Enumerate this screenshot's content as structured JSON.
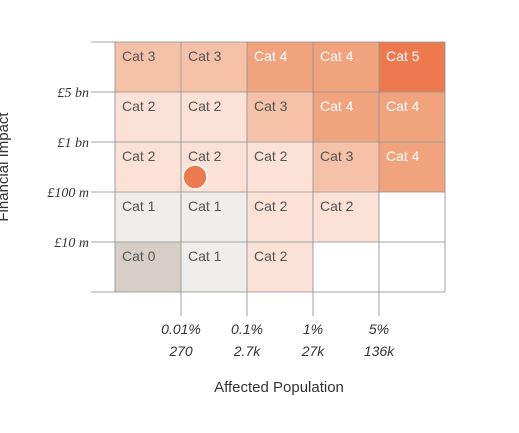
{
  "chart_data": {
    "type": "heatmap",
    "xlabel": "Affected Population",
    "ylabel": "Financial Impact",
    "x_ticks": [
      {
        "pct": "0.01%",
        "count": "270"
      },
      {
        "pct": "0.1%",
        "count": "2.7k"
      },
      {
        "pct": "1%",
        "count": "27k"
      },
      {
        "pct": "5%",
        "count": "136k"
      }
    ],
    "y_ticks": [
      "£5 bn",
      "£1 bn",
      "£100 m",
      "£10 m"
    ],
    "rows": [
      [
        "Cat 3",
        "Cat 3",
        "Cat 4",
        "Cat 4",
        "Cat 5"
      ],
      [
        "Cat 2",
        "Cat 2",
        "Cat 3",
        "Cat 4",
        "Cat 4"
      ],
      [
        "Cat 2",
        "Cat 2",
        "Cat 2",
        "Cat 3",
        "Cat 4"
      ],
      [
        "Cat 1",
        "Cat 1",
        "Cat 2",
        "Cat 2",
        ""
      ],
      [
        "Cat 0",
        "Cat 1",
        "Cat 2",
        "",
        ""
      ]
    ],
    "category_colors": {
      "Cat 0": "#d6cfc7",
      "Cat 1": "#efeeea",
      "Cat 2": "#fbe1d6",
      "Cat 3": "#f5c2a8",
      "Cat 4": "#f0a37c",
      "Cat 5": "#ec7a4e"
    },
    "marker": {
      "col": 1,
      "row": 2,
      "color": "#ec7a4e"
    },
    "grid": true
  }
}
